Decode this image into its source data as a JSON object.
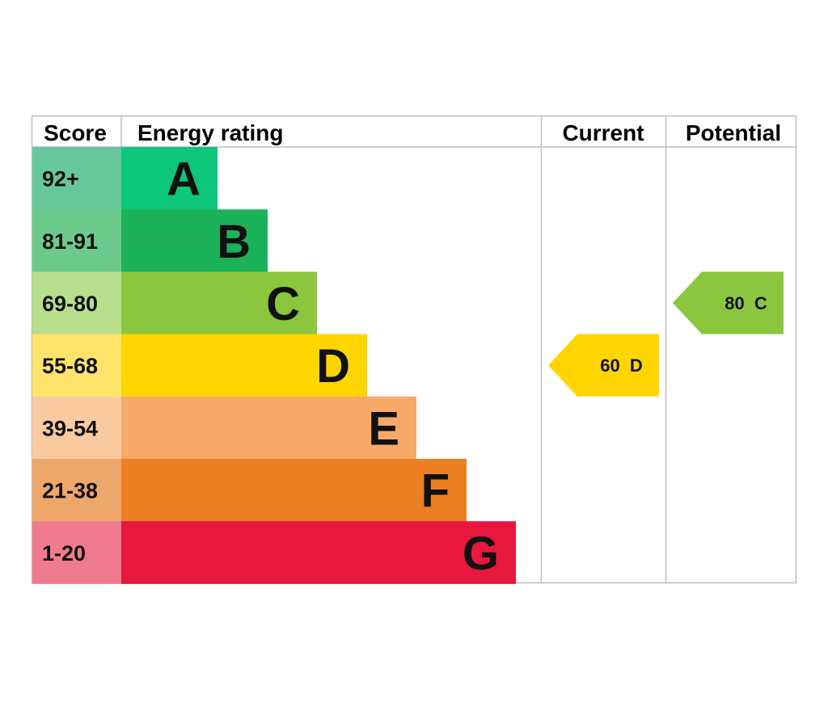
{
  "headers": {
    "score": "Score",
    "energy_rating": "Energy rating",
    "current": "Current",
    "potential": "Potential"
  },
  "chart_data": {
    "type": "bar",
    "bands": [
      {
        "letter": "A",
        "range": "92+",
        "color": "#0cc67a",
        "score_color": "#66c79c"
      },
      {
        "letter": "B",
        "range": "81-91",
        "color": "#1cb25a",
        "score_color": "#6ccb8c"
      },
      {
        "letter": "C",
        "range": "69-80",
        "color": "#8cc63f",
        "score_color": "#b7de8b"
      },
      {
        "letter": "D",
        "range": "55-68",
        "color": "#ffd500",
        "score_color": "#ffe36b"
      },
      {
        "letter": "E",
        "range": "39-54",
        "color": "#f7a968",
        "score_color": "#f9c9a0"
      },
      {
        "letter": "F",
        "range": "21-38",
        "color": "#ec7f22",
        "score_color": "#eda76a"
      },
      {
        "letter": "G",
        "range": "1-20",
        "color": "#e8173f",
        "score_color": "#f07a8e"
      }
    ],
    "current": {
      "value": 60,
      "band": "D",
      "label": "60  D",
      "color": "#ffd500"
    },
    "potential": {
      "value": 80,
      "band": "C",
      "label": "80  C",
      "color": "#8cc63f"
    }
  }
}
